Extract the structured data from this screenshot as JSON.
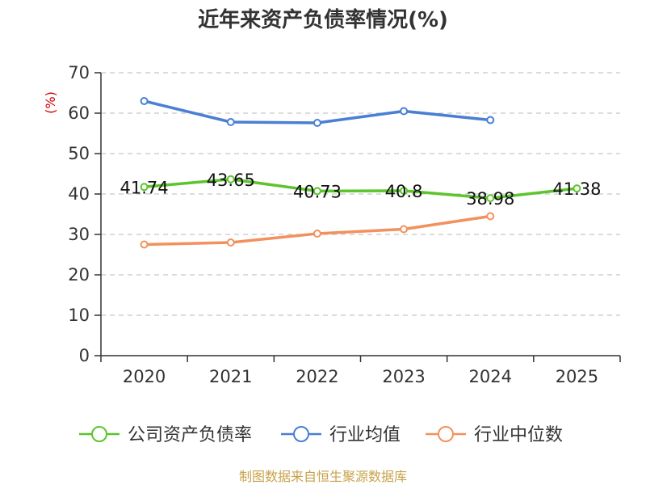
{
  "chart_data": {
    "type": "line",
    "title": "近年来资产负债率情况(%)",
    "ylabel": "(%)",
    "xlabel": "",
    "categories": [
      "2020",
      "2021",
      "2022",
      "2023",
      "2024",
      "2025"
    ],
    "yticks": [
      "0",
      "10",
      "20",
      "30",
      "40",
      "50",
      "60",
      "70"
    ],
    "ylim": [
      0,
      70
    ],
    "grid": true,
    "legend_position": "bottom",
    "series": [
      {
        "name": "公司资产负债率",
        "color": "#5cc42c",
        "values": [
          41.74,
          43.65,
          40.73,
          40.8,
          38.98,
          41.38
        ],
        "labels": [
          "41.74",
          "43.65",
          "40.73",
          "40.8",
          "38.98",
          "41.38"
        ]
      },
      {
        "name": "行业均值",
        "color": "#4a7fd4",
        "values": [
          63.0,
          57.8,
          57.6,
          60.5,
          58.3,
          null
        ]
      },
      {
        "name": "行业中位数",
        "color": "#f2915e",
        "values": [
          27.5,
          28.0,
          30.2,
          31.3,
          34.5,
          null
        ]
      }
    ]
  },
  "source": "制图数据来自恒生聚源数据库"
}
